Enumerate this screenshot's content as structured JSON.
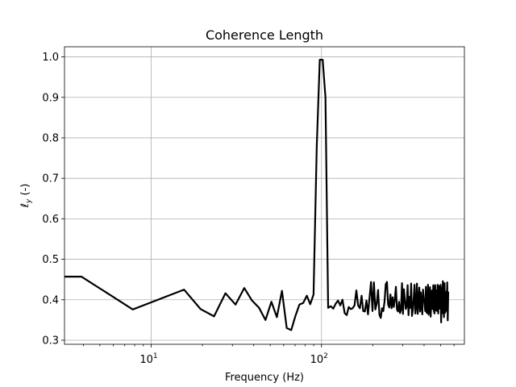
{
  "chart_data": {
    "type": "line",
    "title": "Coherence Length",
    "xlabel": "Frequency (Hz)",
    "ylabel": "ℓ_y (-)",
    "ylabel_main": "ℓ",
    "ylabel_sub": "y",
    "ylabel_unit": " (-)",
    "xscale": "log",
    "xlim": [
      3.1,
      690
    ],
    "ylim": [
      0.29,
      1.025
    ],
    "grid": true,
    "x_major_ticks": [
      10,
      100
    ],
    "x_tick_labels": [
      {
        "base": "10",
        "exp": "1"
      },
      {
        "base": "10",
        "exp": "2"
      }
    ],
    "y_ticks": [
      0.3,
      0.4,
      0.5,
      0.6,
      0.7,
      0.8,
      0.9,
      1.0
    ],
    "y_tick_labels": [
      "0.3",
      "0.4",
      "0.5",
      "0.6",
      "0.7",
      "0.8",
      "0.9",
      "1.0"
    ],
    "series": [
      {
        "color": "#000000",
        "x": [
          3.1,
          3.9,
          7.8,
          15.6,
          19.5,
          23.4,
          27.3,
          31.3,
          35.2,
          39.1,
          43.0,
          46.9,
          50.8,
          54.7,
          58.6,
          62.5,
          66.4,
          70.3,
          74.2,
          78.1,
          82.0,
          85.9,
          89.8,
          93.8,
          97.7,
          101.6,
          105.5,
          109.4,
          113.3,
          117.2,
          121.1,
          125.0,
          128.9,
          132.8,
          136.7,
          140.6,
          144.5,
          148.4,
          152.3,
          156.3,
          160.2,
          164.1,
          168.0,
          171.9,
          175.8,
          179.7,
          183.6,
          187.5,
          191.4,
          195.3,
          199.2,
          203.1,
          207.0,
          210.9,
          214.8,
          218.8,
          222.7,
          226.6,
          230.5,
          234.4,
          238.3,
          242.2,
          246.1,
          250.0,
          253.9,
          257.8,
          261.7,
          265.6,
          269.5,
          273.4,
          277.3,
          281.3,
          285.2,
          289.1,
          293.0,
          296.9,
          300.8,
          304.7,
          308.6,
          312.5,
          316.4,
          320.3,
          324.2,
          328.1,
          332.0,
          335.9,
          339.8,
          343.8,
          347.7,
          351.6,
          355.5,
          359.4,
          363.3,
          367.2,
          371.1,
          375.0,
          378.9,
          382.8,
          386.7,
          390.6,
          394.5,
          398.4,
          402.3,
          406.3,
          410.2,
          414.1,
          418.0,
          421.9,
          425.8,
          429.7,
          433.6,
          437.5,
          441.4,
          445.3,
          449.2,
          453.1,
          457.0,
          460.9,
          464.8,
          468.8,
          472.7,
          476.6,
          480.5,
          484.4,
          488.3,
          492.2,
          496.1,
          500.0,
          503.9,
          507.8,
          511.7,
          515.6,
          519.5,
          523.4,
          527.3,
          531.3,
          535.2,
          539.1,
          543.0,
          546.9,
          550.8,
          554.7
        ],
        "y": [
          0.457,
          0.457,
          0.376,
          0.425,
          0.377,
          0.359,
          0.416,
          0.388,
          0.429,
          0.398,
          0.38,
          0.35,
          0.395,
          0.357,
          0.422,
          0.33,
          0.325,
          0.36,
          0.388,
          0.392,
          0.41,
          0.389,
          0.413,
          0.78,
          0.993,
          0.993,
          0.9,
          0.38,
          0.384,
          0.378,
          0.39,
          0.398,
          0.386,
          0.4,
          0.367,
          0.362,
          0.382,
          0.377,
          0.379,
          0.386,
          0.423,
          0.386,
          0.379,
          0.41,
          0.372,
          0.371,
          0.398,
          0.364,
          0.405,
          0.444,
          0.372,
          0.443,
          0.376,
          0.39,
          0.424,
          0.363,
          0.355,
          0.379,
          0.372,
          0.395,
          0.438,
          0.444,
          0.388,
          0.381,
          0.413,
          0.379,
          0.406,
          0.382,
          0.401,
          0.432,
          0.376,
          0.371,
          0.395,
          0.367,
          0.375,
          0.441,
          0.365,
          0.426,
          0.4,
          0.377,
          0.384,
          0.436,
          0.362,
          0.407,
          0.38,
          0.44,
          0.36,
          0.375,
          0.403,
          0.437,
          0.366,
          0.384,
          0.44,
          0.365,
          0.397,
          0.43,
          0.371,
          0.418,
          0.389,
          0.364,
          0.425,
          0.402,
          0.394,
          0.372,
          0.432,
          0.368,
          0.367,
          0.437,
          0.363,
          0.4,
          0.431,
          0.358,
          0.406,
          0.423,
          0.377,
          0.436,
          0.372,
          0.366,
          0.436,
          0.374,
          0.423,
          0.372,
          0.437,
          0.366,
          0.434,
          0.378,
          0.409,
          0.437,
          0.344,
          0.43,
          0.367,
          0.446,
          0.381,
          0.357,
          0.441,
          0.368,
          0.374,
          0.42,
          0.373,
          0.443,
          0.349,
          0.42
        ]
      }
    ]
  }
}
